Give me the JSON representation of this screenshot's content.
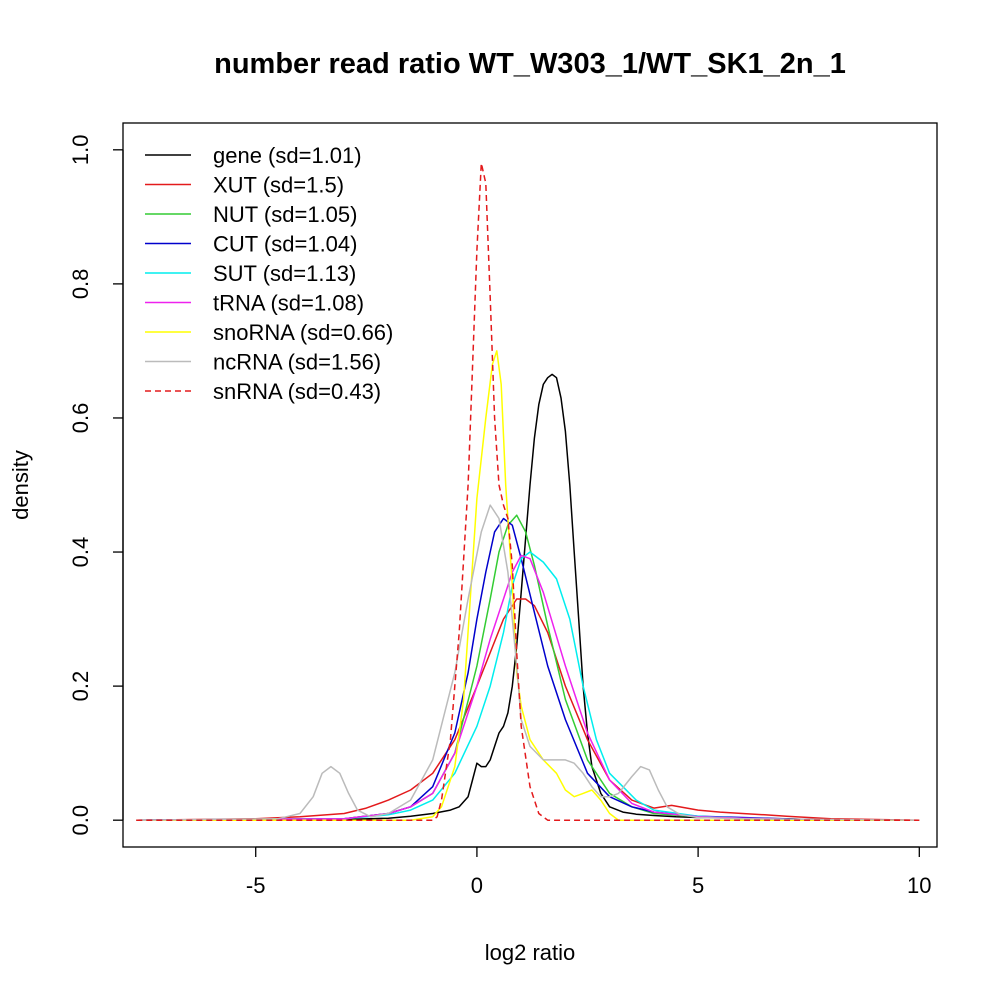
{
  "chart_data": {
    "type": "line",
    "title": "number read ratio WT_W303_1/WT_SK1_2n_1",
    "xlabel": "log2 ratio",
    "ylabel": "density",
    "xlim": [
      -8.0,
      10.4
    ],
    "ylim": [
      -0.04,
      1.04
    ],
    "x_ticks": [
      -5,
      0,
      5,
      10
    ],
    "y_ticks": [
      0.0,
      0.2,
      0.4,
      0.6,
      0.8,
      1.0
    ],
    "x_tick_labels": [
      "-5",
      "0",
      "5",
      "10"
    ],
    "y_tick_labels": [
      "0.0",
      "0.2",
      "0.4",
      "0.6",
      "0.8",
      "1.0"
    ],
    "grid": false,
    "legend_position": "top-left",
    "series": [
      {
        "name": "gene (sd=1.01)",
        "color": "#000000",
        "dash": "solid",
        "x": [
          -7.7,
          -6.0,
          -3.0,
          -2.0,
          -1.5,
          -1.0,
          -0.6,
          -0.4,
          -0.2,
          -0.1,
          0.0,
          0.1,
          0.2,
          0.3,
          0.4,
          0.5,
          0.6,
          0.7,
          0.8,
          0.9,
          1.0,
          1.1,
          1.2,
          1.3,
          1.4,
          1.5,
          1.6,
          1.7,
          1.8,
          1.9,
          2.0,
          2.1,
          2.2,
          2.3,
          2.4,
          2.5,
          2.6,
          2.8,
          3.0,
          3.3,
          3.6,
          4.0,
          4.5,
          5.0,
          5.5,
          6.0,
          7.0,
          8.0,
          10.0
        ],
        "y": [
          0.0,
          0.0,
          0.001,
          0.003,
          0.006,
          0.01,
          0.015,
          0.02,
          0.035,
          0.06,
          0.085,
          0.08,
          0.08,
          0.09,
          0.11,
          0.13,
          0.14,
          0.16,
          0.2,
          0.26,
          0.34,
          0.42,
          0.5,
          0.57,
          0.62,
          0.65,
          0.66,
          0.665,
          0.66,
          0.63,
          0.58,
          0.5,
          0.4,
          0.3,
          0.2,
          0.13,
          0.08,
          0.04,
          0.02,
          0.012,
          0.009,
          0.007,
          0.005,
          0.004,
          0.004,
          0.003,
          0.002,
          0.0,
          0.0
        ]
      },
      {
        "name": "XUT (sd=1.5)",
        "color": "#e31a1c",
        "dash": "solid",
        "x": [
          -7.7,
          -5.0,
          -4.0,
          -3.0,
          -2.5,
          -2.0,
          -1.5,
          -1.0,
          -0.5,
          0.0,
          0.3,
          0.6,
          0.9,
          1.1,
          1.3,
          1.6,
          2.0,
          2.5,
          3.0,
          3.5,
          4.0,
          4.4,
          5.0,
          5.5,
          6.0,
          6.5,
          7.0,
          7.5,
          8.0,
          10.0
        ],
        "y": [
          0.0,
          0.002,
          0.005,
          0.01,
          0.018,
          0.03,
          0.045,
          0.07,
          0.12,
          0.2,
          0.25,
          0.3,
          0.33,
          0.33,
          0.32,
          0.28,
          0.2,
          0.12,
          0.06,
          0.03,
          0.018,
          0.022,
          0.015,
          0.012,
          0.01,
          0.008,
          0.006,
          0.004,
          0.002,
          0.0
        ]
      },
      {
        "name": "NUT (sd=1.05)",
        "color": "#33cc33",
        "dash": "solid",
        "x": [
          -7.7,
          -3.0,
          -2.0,
          -1.5,
          -1.0,
          -0.5,
          0.0,
          0.3,
          0.5,
          0.7,
          0.9,
          1.1,
          1.3,
          1.6,
          2.0,
          2.5,
          3.0,
          3.5,
          4.0,
          5.0,
          6.0,
          8.0,
          10.0
        ],
        "y": [
          0.0,
          0.002,
          0.01,
          0.02,
          0.04,
          0.1,
          0.23,
          0.33,
          0.4,
          0.44,
          0.455,
          0.43,
          0.38,
          0.29,
          0.18,
          0.09,
          0.04,
          0.02,
          0.01,
          0.005,
          0.003,
          0.0,
          0.0
        ]
      },
      {
        "name": "CUT (sd=1.04)",
        "color": "#0000cc",
        "dash": "solid",
        "x": [
          -7.7,
          -3.0,
          -2.0,
          -1.5,
          -1.0,
          -0.5,
          -0.2,
          0.0,
          0.2,
          0.4,
          0.6,
          0.8,
          1.0,
          1.3,
          1.6,
          2.0,
          2.5,
          3.0,
          3.5,
          4.0,
          5.0,
          6.0,
          8.0,
          10.0
        ],
        "y": [
          0.0,
          0.002,
          0.01,
          0.02,
          0.05,
          0.13,
          0.22,
          0.3,
          0.37,
          0.43,
          0.45,
          0.44,
          0.39,
          0.31,
          0.23,
          0.15,
          0.07,
          0.035,
          0.02,
          0.012,
          0.006,
          0.004,
          0.0,
          0.0
        ]
      },
      {
        "name": "SUT (sd=1.13)",
        "color": "#00eeee",
        "dash": "solid",
        "x": [
          -7.7,
          -3.0,
          -2.0,
          -1.5,
          -1.0,
          -0.5,
          0.0,
          0.3,
          0.6,
          0.8,
          1.0,
          1.2,
          1.5,
          1.8,
          2.1,
          2.4,
          2.7,
          3.0,
          3.3,
          3.6,
          4.0,
          5.0,
          6.0,
          8.0,
          10.0
        ],
        "y": [
          0.0,
          0.002,
          0.008,
          0.015,
          0.03,
          0.07,
          0.14,
          0.2,
          0.28,
          0.35,
          0.39,
          0.4,
          0.385,
          0.36,
          0.3,
          0.2,
          0.12,
          0.07,
          0.05,
          0.03,
          0.015,
          0.006,
          0.003,
          0.0,
          0.0
        ]
      },
      {
        "name": "tRNA (sd=1.08)",
        "color": "#ee22ee",
        "dash": "solid",
        "x": [
          -7.7,
          -3.0,
          -2.0,
          -1.5,
          -1.0,
          -0.5,
          0.0,
          0.3,
          0.6,
          0.8,
          1.0,
          1.2,
          1.5,
          2.0,
          2.5,
          3.0,
          3.5,
          4.0,
          5.0,
          6.0,
          8.0,
          10.0
        ],
        "y": [
          0.0,
          0.002,
          0.01,
          0.02,
          0.04,
          0.1,
          0.2,
          0.27,
          0.33,
          0.37,
          0.395,
          0.39,
          0.34,
          0.23,
          0.13,
          0.06,
          0.025,
          0.012,
          0.005,
          0.003,
          0.0,
          0.0
        ]
      },
      {
        "name": "snoRNA (sd=0.66)",
        "color": "#ffff00",
        "dash": "solid",
        "x": [
          -7.7,
          -1.5,
          -1.0,
          -0.8,
          -0.5,
          -0.3,
          0.0,
          0.2,
          0.35,
          0.45,
          0.55,
          0.65,
          0.8,
          0.9,
          1.0,
          1.2,
          1.5,
          1.8,
          2.0,
          2.2,
          2.4,
          2.6,
          2.8,
          3.0,
          3.2,
          3.5,
          4.0,
          10.0
        ],
        "y": [
          0.0,
          0.0,
          0.005,
          0.02,
          0.08,
          0.18,
          0.48,
          0.6,
          0.68,
          0.7,
          0.65,
          0.5,
          0.35,
          0.22,
          0.17,
          0.12,
          0.09,
          0.07,
          0.045,
          0.035,
          0.04,
          0.045,
          0.03,
          0.01,
          0.0,
          0.0,
          0.0,
          0.0
        ]
      },
      {
        "name": "ncRNA (sd=1.56)",
        "color": "#bbbbbb",
        "dash": "solid",
        "x": [
          -7.7,
          -4.5,
          -4.0,
          -3.7,
          -3.5,
          -3.3,
          -3.1,
          -2.9,
          -2.7,
          -2.4,
          -2.0,
          -1.5,
          -1.0,
          -0.5,
          -0.2,
          0.1,
          0.3,
          0.5,
          0.7,
          0.9,
          1.0,
          1.2,
          1.5,
          1.7,
          2.0,
          2.2,
          2.4,
          2.6,
          2.8,
          3.0,
          3.2,
          3.5,
          3.7,
          3.9,
          4.1,
          4.3,
          4.6,
          5.0,
          6.0,
          10.0
        ],
        "y": [
          0.0,
          0.002,
          0.01,
          0.035,
          0.07,
          0.08,
          0.07,
          0.04,
          0.015,
          0.005,
          0.01,
          0.03,
          0.09,
          0.22,
          0.33,
          0.43,
          0.47,
          0.45,
          0.37,
          0.23,
          0.15,
          0.11,
          0.09,
          0.09,
          0.09,
          0.085,
          0.07,
          0.05,
          0.035,
          0.035,
          0.04,
          0.065,
          0.08,
          0.075,
          0.045,
          0.02,
          0.008,
          0.004,
          0.002,
          0.0
        ]
      },
      {
        "name": "snRNA (sd=0.43)",
        "color": "#e31a1c",
        "dash": "dashed",
        "x": [
          -7.7,
          -1.0,
          -0.9,
          -0.8,
          -0.6,
          -0.4,
          -0.2,
          0.0,
          0.1,
          0.2,
          0.3,
          0.4,
          0.5,
          0.6,
          0.7,
          0.8,
          0.9,
          1.0,
          1.2,
          1.4,
          1.6,
          2.0,
          4.0,
          10.0
        ],
        "y": [
          0.0,
          0.0,
          0.005,
          0.03,
          0.12,
          0.28,
          0.5,
          0.85,
          0.98,
          0.95,
          0.78,
          0.6,
          0.5,
          0.47,
          0.45,
          0.38,
          0.25,
          0.14,
          0.05,
          0.01,
          0.0,
          0.0,
          0.0,
          0.0
        ]
      }
    ]
  }
}
